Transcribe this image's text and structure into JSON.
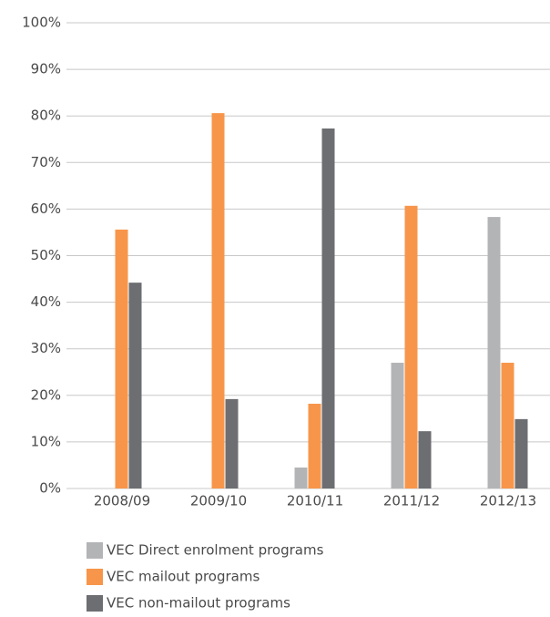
{
  "chart_data": {
    "type": "bar",
    "categories": [
      "2008/09",
      "2009/10",
      "2010/11",
      "2011/12",
      "2012/13"
    ],
    "series": [
      {
        "name": "VEC Direct enrolment programs",
        "color": "#b3b4b6",
        "values": [
          0,
          0,
          4.5,
          27,
          58.3
        ]
      },
      {
        "name": "VEC mailout programs",
        "color": "#f7964a",
        "values": [
          55.6,
          80.6,
          18.2,
          60.7,
          27
        ]
      },
      {
        "name": "VEC non-mailout programs",
        "color": "#6d6e71",
        "values": [
          44.2,
          19.2,
          77.3,
          12.3,
          14.9
        ]
      }
    ],
    "ylim": [
      0,
      100
    ],
    "yticks": [
      {
        "value": 0,
        "label": "0%"
      },
      {
        "value": 10,
        "label": "10%"
      },
      {
        "value": 20,
        "label": "20%"
      },
      {
        "value": 30,
        "label": "30%"
      },
      {
        "value": 40,
        "label": "40%"
      },
      {
        "value": 50,
        "label": "50%"
      },
      {
        "value": 60,
        "label": "60%"
      },
      {
        "value": 70,
        "label": "70%"
      },
      {
        "value": 80,
        "label": "80%"
      },
      {
        "value": 90,
        "label": "90%"
      },
      {
        "value": 100,
        "label": "100%"
      }
    ],
    "grid": true
  }
}
